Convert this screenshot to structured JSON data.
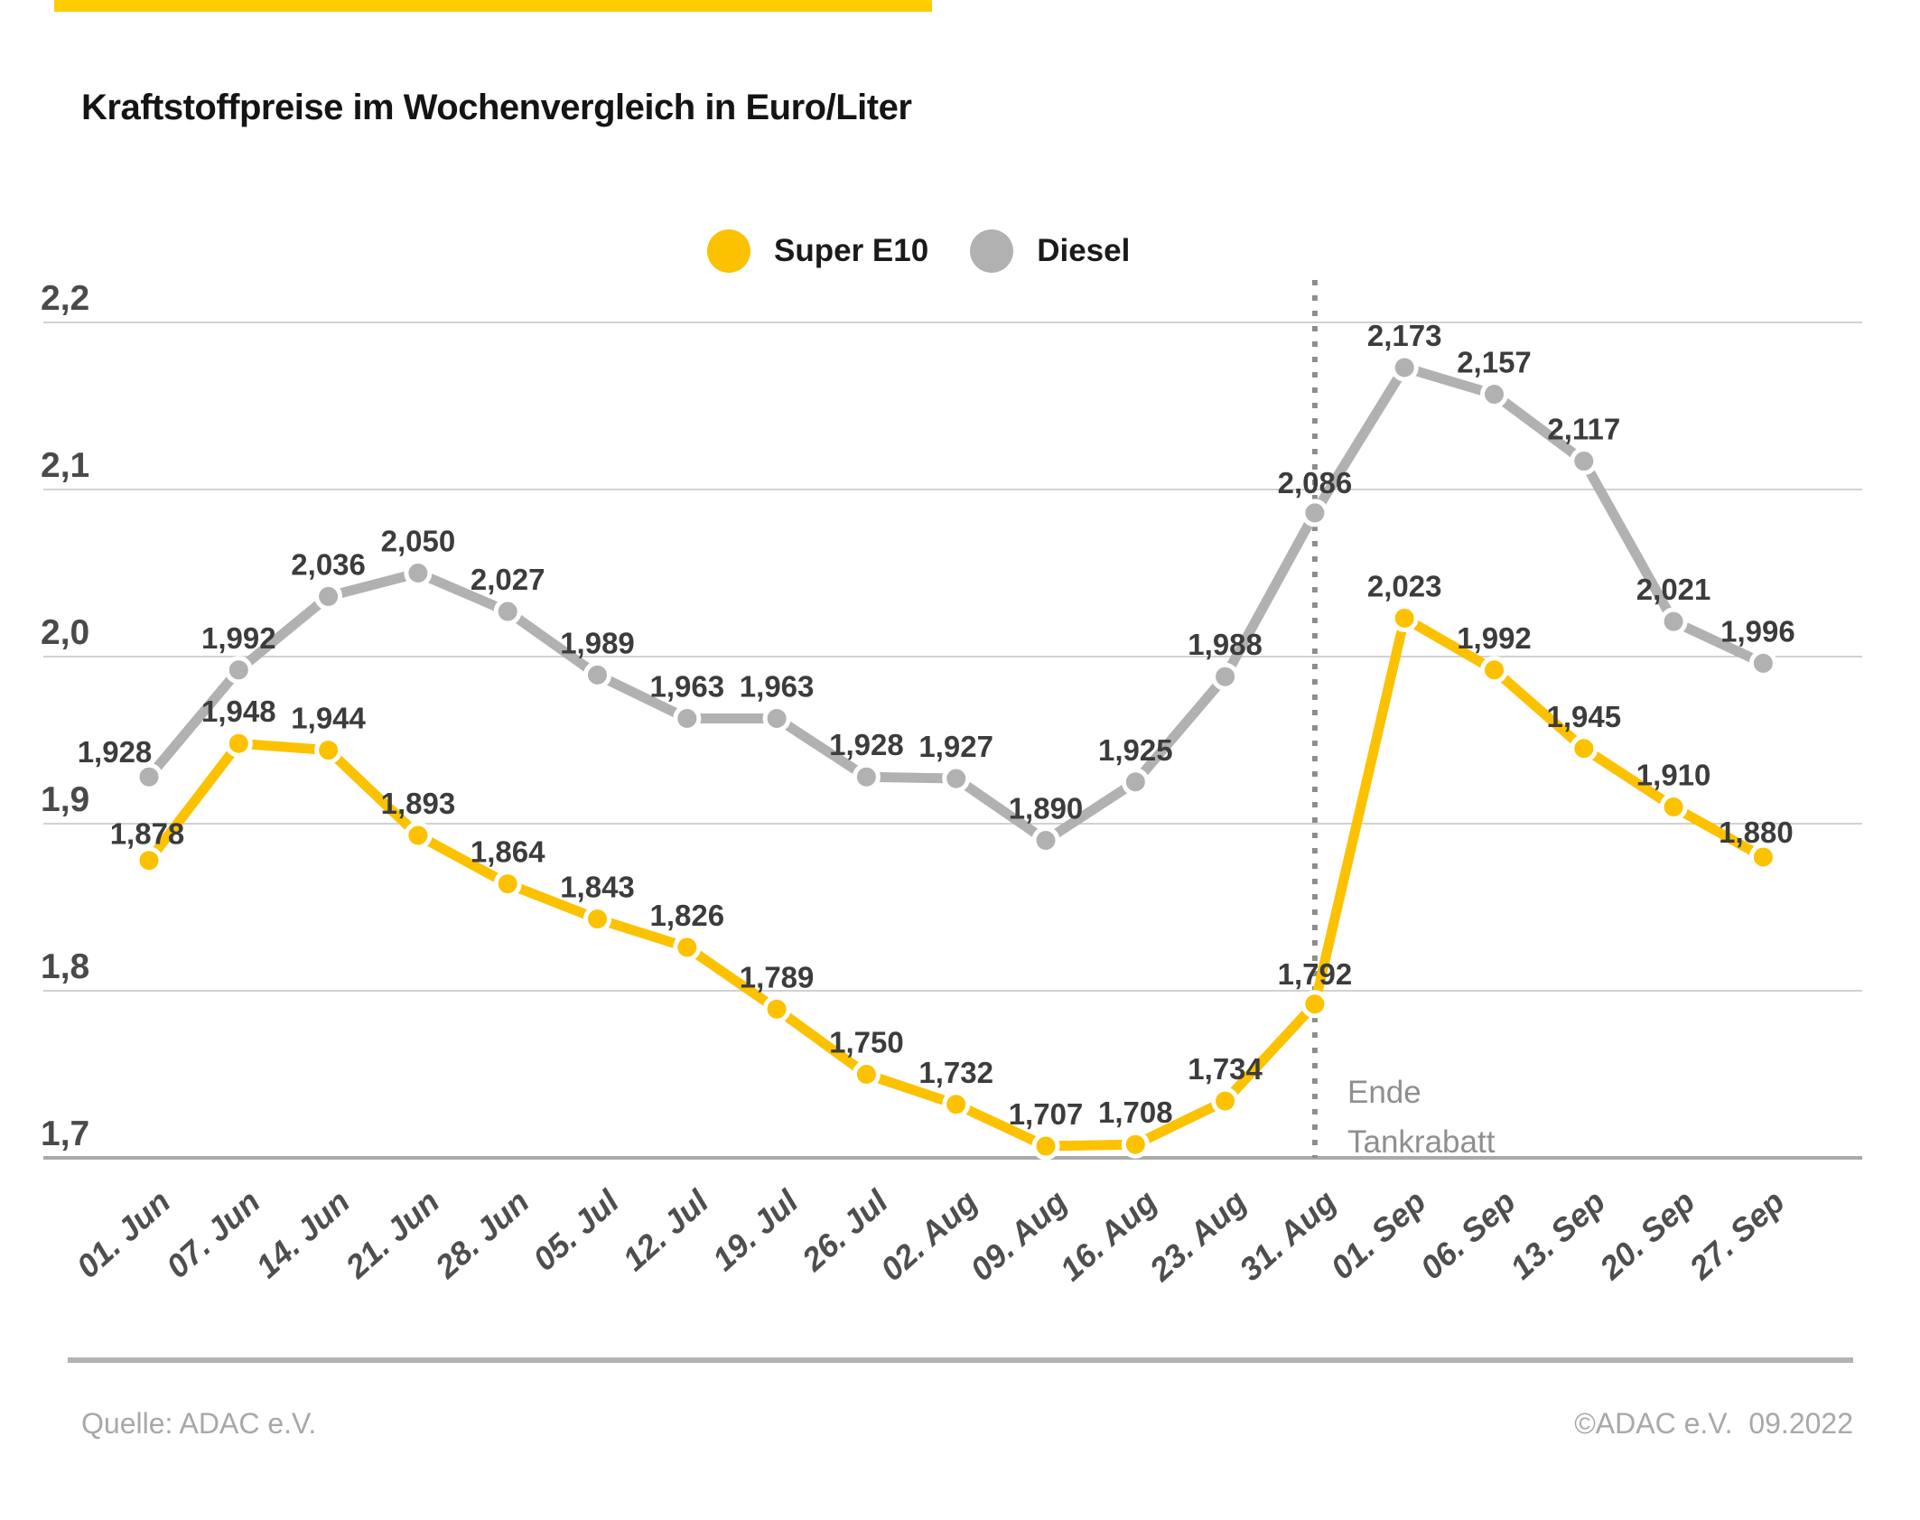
{
  "brand": {
    "accent_color": "#FFCC00"
  },
  "annotation": {
    "line1": "Ende",
    "line2": "Tankrabatt"
  },
  "footer": {
    "source": "Quelle: ADAC e.V.",
    "copyright": "©ADAC e.V.  09.2022"
  },
  "chart_data": {
    "type": "line",
    "title": "Kraftstoffpreise im Wochenvergleich in Euro/Liter",
    "xlabel": "",
    "ylabel": "Euro/Liter",
    "ylim": [
      1.7,
      2.2
    ],
    "grid": "horizontal",
    "legend_position": "top-center",
    "categories": [
      "01. Jun",
      "07. Jun",
      "14. Jun",
      "21. Jun",
      "28. Jun",
      "05. Jul",
      "12. Jul",
      "19. Jul",
      "26. Jul",
      "02. Aug",
      "09. Aug",
      "16. Aug",
      "23. Aug",
      "31. Aug",
      "01. Sep",
      "06. Sep",
      "13. Sep",
      "20. Sep",
      "27. Sep"
    ],
    "yticks": [
      {
        "value": 1.7,
        "label": "1,7"
      },
      {
        "value": 1.8,
        "label": "1,8"
      },
      {
        "value": 1.9,
        "label": "1,9"
      },
      {
        "value": 2.0,
        "label": "2,0"
      },
      {
        "value": 2.1,
        "label": "2,1"
      },
      {
        "value": 2.2,
        "label": "2,2"
      }
    ],
    "series": [
      {
        "name": "Super E10",
        "color": "#FCC200",
        "values": [
          1.878,
          1.948,
          1.944,
          1.893,
          1.864,
          1.843,
          1.826,
          1.789,
          1.75,
          1.732,
          1.707,
          1.708,
          1.734,
          1.792,
          2.023,
          1.992,
          1.945,
          1.91,
          1.88
        ],
        "labels": [
          "1,878",
          "1,948",
          "1,944",
          "1,893",
          "1,864",
          "1,843",
          "1,826",
          "1,789",
          "1,750",
          "1,732",
          "1,707",
          "1,708",
          "1,734",
          "1,792",
          "2,023",
          "1,992",
          "1,945",
          "1,910",
          "1,880"
        ]
      },
      {
        "name": "Diesel",
        "color": "#B1B1B1",
        "values": [
          1.928,
          1.992,
          2.036,
          2.05,
          2.027,
          1.989,
          1.963,
          1.963,
          1.928,
          1.927,
          1.89,
          1.925,
          1.988,
          2.086,
          2.173,
          2.157,
          2.117,
          2.021,
          1.996
        ],
        "labels": [
          "1,928",
          "1,992",
          "2,036",
          "2,050",
          "2,027",
          "1,989",
          "1,963",
          "1,963",
          "1,928",
          "1,927",
          "1,890",
          "1,925",
          "1,988",
          "2,086",
          "2,173",
          "2,157",
          "2,117",
          "2,021",
          "1,996"
        ]
      }
    ],
    "vline": {
      "category": "31. Aug",
      "style": "dotted",
      "label": "Ende Tankrabatt"
    }
  }
}
